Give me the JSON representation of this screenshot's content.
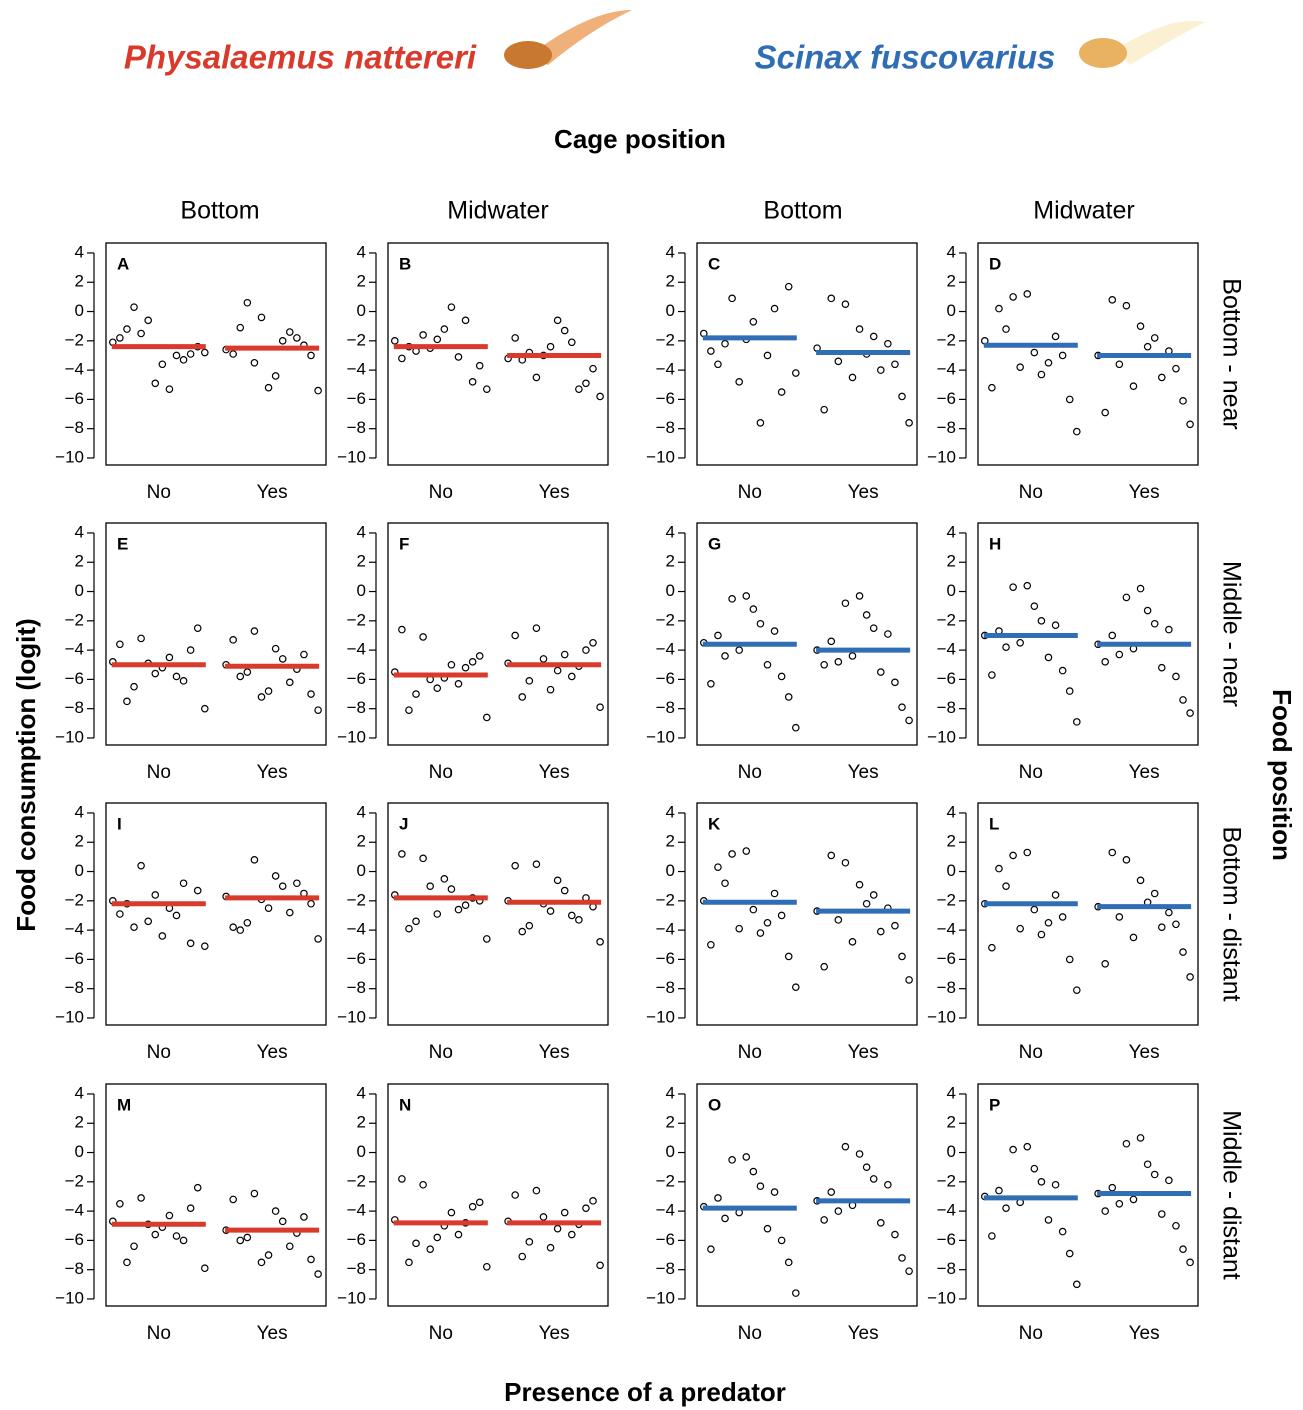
{
  "header": {
    "species": [
      "Physalaemus nattereri",
      "Scinax fuscovarius"
    ],
    "species_colors": [
      "#d93a2b",
      "#2f6db5"
    ],
    "cage_title": "Cage position",
    "cage_columns": [
      "Bottom",
      "Midwater",
      "Bottom",
      "Midwater"
    ],
    "food_title": "Food position",
    "food_rows": [
      "Bottom - near",
      "Middle - near",
      "Bottom - distant",
      "Middle - distant"
    ],
    "y_label": "Food consumption (logit)",
    "x_label": "Presence of a predator"
  },
  "chart_data": [
    {
      "type": "scatter",
      "label": "A",
      "categories": [
        "No",
        "Yes"
      ],
      "line_color": "#d93a2b",
      "ylim": [
        -10.48,
        4.68
      ],
      "yticks": [
        4,
        2,
        0,
        {
          "value": -2,
          "label": "−2"
        },
        {
          "value": -4,
          "label": "−4"
        },
        {
          "value": -6,
          "label": "−6"
        },
        {
          "value": -8,
          "label": "−8"
        },
        {
          "value": -10,
          "label": "−10"
        }
      ],
      "means": [
        -2.4,
        -2.5
      ],
      "points": [
        [
          -2.1,
          -3.0,
          -1.5,
          -2.8,
          -5.3,
          0.3,
          -2.4,
          -3.6,
          -1.2,
          -2.9,
          -4.9,
          -1.8,
          -3.3,
          -0.6
        ],
        [
          -2.6,
          -1.4,
          -3.5,
          -5.4,
          -2.0,
          0.6,
          -3.0,
          -4.4,
          -1.1,
          -2.3,
          -5.2,
          -2.9,
          -1.8,
          -0.4
        ]
      ]
    },
    {
      "type": "scatter",
      "label": "B",
      "categories": [
        "No",
        "Yes"
      ],
      "line_color": "#d93a2b",
      "ylim": [
        -10.48,
        4.68
      ],
      "yticks": [
        4,
        2,
        0,
        {
          "value": -2,
          "label": "−2"
        },
        {
          "value": -4,
          "label": "−4"
        },
        {
          "value": -6,
          "label": "−6"
        },
        {
          "value": -8,
          "label": "−8"
        },
        {
          "value": -10,
          "label": "−10"
        }
      ],
      "means": [
        -2.4,
        -3.0
      ],
      "points": [
        [
          -2.0,
          -3.1,
          -1.6,
          -5.3,
          0.3,
          -2.7,
          -3.7,
          -1.2,
          -2.4,
          -4.8,
          -1.9,
          -3.2,
          -0.6,
          -2.5
        ],
        [
          -3.2,
          -2.1,
          -4.5,
          -5.8,
          -1.3,
          -2.8,
          -3.9,
          -0.6,
          -3.3,
          -4.9,
          -2.4,
          -1.8,
          -5.3,
          -3.0
        ]
      ]
    },
    {
      "type": "scatter",
      "label": "C",
      "categories": [
        "No",
        "Yes"
      ],
      "line_color": "#2f6db5",
      "ylim": [
        -10.48,
        4.68
      ],
      "yticks": [
        4,
        2,
        0,
        {
          "value": -2,
          "label": "−2"
        },
        {
          "value": -4,
          "label": "−4"
        },
        {
          "value": -6,
          "label": "−6"
        },
        {
          "value": -8,
          "label": "−8"
        },
        {
          "value": -10,
          "label": "−10"
        }
      ],
      "means": [
        -1.8,
        -2.8
      ],
      "points": [
        [
          -1.5,
          -3.0,
          0.9,
          -4.2,
          -7.6,
          -2.2,
          1.7,
          -0.7,
          -3.6,
          -5.5,
          -1.9,
          -2.7,
          0.2,
          -4.8
        ],
        [
          -2.5,
          -4.0,
          0.5,
          -7.6,
          -1.7,
          -3.4,
          -5.8,
          -2.9,
          0.9,
          -3.6,
          -1.2,
          -6.7,
          -2.2,
          -4.5
        ]
      ]
    },
    {
      "type": "scatter",
      "label": "D",
      "categories": [
        "No",
        "Yes"
      ],
      "line_color": "#2f6db5",
      "ylim": [
        -10.48,
        4.68
      ],
      "yticks": [
        4,
        2,
        0,
        {
          "value": -2,
          "label": "−2"
        },
        {
          "value": -4,
          "label": "−4"
        },
        {
          "value": -6,
          "label": "−6"
        },
        {
          "value": -8,
          "label": "−8"
        },
        {
          "value": -10,
          "label": "−10"
        }
      ],
      "means": [
        -2.3,
        -3.0
      ],
      "points": [
        [
          -2.0,
          -3.5,
          1.0,
          -8.2,
          -4.3,
          -1.2,
          -6.0,
          -2.8,
          0.2,
          -3.0,
          1.2,
          -5.2,
          -1.7,
          -3.8
        ],
        [
          -3.0,
          -4.5,
          0.4,
          -7.7,
          -1.8,
          -3.6,
          -6.1,
          -2.4,
          0.8,
          -3.9,
          -1.0,
          -6.9,
          -2.7,
          -5.1
        ]
      ]
    },
    {
      "type": "scatter",
      "label": "E",
      "categories": [
        "No",
        "Yes"
      ],
      "line_color": "#d93a2b",
      "ylim": [
        -10.48,
        4.68
      ],
      "yticks": [
        4,
        2,
        0,
        {
          "value": -2,
          "label": "−2"
        },
        {
          "value": -4,
          "label": "−4"
        },
        {
          "value": -6,
          "label": "−6"
        },
        {
          "value": -8,
          "label": "−8"
        },
        {
          "value": -10,
          "label": "−10"
        }
      ],
      "means": [
        -5.0,
        -5.1
      ],
      "points": [
        [
          -4.8,
          -5.8,
          -3.2,
          -8.0,
          -4.5,
          -6.5,
          -2.5,
          -5.2,
          -7.5,
          -4.0,
          -5.6,
          -3.6,
          -6.1,
          -4.9
        ],
        [
          -5.0,
          -6.2,
          -2.7,
          -8.1,
          -4.6,
          -5.5,
          -7.0,
          -3.9,
          -5.8,
          -4.3,
          -6.8,
          -3.3,
          -5.3,
          -7.2
        ]
      ]
    },
    {
      "type": "scatter",
      "label": "F",
      "categories": [
        "No",
        "Yes"
      ],
      "line_color": "#d93a2b",
      "ylim": [
        -10.48,
        4.68
      ],
      "yticks": [
        4,
        2,
        0,
        {
          "value": -2,
          "label": "−2"
        },
        {
          "value": -4,
          "label": "−4"
        },
        {
          "value": -6,
          "label": "−6"
        },
        {
          "value": -8,
          "label": "−8"
        },
        {
          "value": -10,
          "label": "−10"
        }
      ],
      "means": [
        -5.7,
        -5.0
      ],
      "points": [
        [
          -5.5,
          -6.3,
          -3.1,
          -8.6,
          -5.0,
          -7.0,
          -4.4,
          -5.9,
          -8.1,
          -4.8,
          -6.6,
          -2.6,
          -5.2,
          -6.0
        ],
        [
          -4.9,
          -5.8,
          -2.5,
          -7.9,
          -4.3,
          -6.1,
          -3.5,
          -5.4,
          -7.2,
          -4.0,
          -6.7,
          -3.0,
          -5.1,
          -4.6
        ]
      ]
    },
    {
      "type": "scatter",
      "label": "G",
      "categories": [
        "No",
        "Yes"
      ],
      "line_color": "#2f6db5",
      "ylim": [
        -10.48,
        4.68
      ],
      "yticks": [
        4,
        2,
        0,
        {
          "value": -2,
          "label": "−2"
        },
        {
          "value": -4,
          "label": "−4"
        },
        {
          "value": -6,
          "label": "−6"
        },
        {
          "value": -8,
          "label": "−8"
        },
        {
          "value": -10,
          "label": "−10"
        }
      ],
      "means": [
        -3.6,
        -4.0
      ],
      "points": [
        [
          -3.5,
          -5.0,
          -0.5,
          -9.3,
          -2.2,
          -4.4,
          -7.2,
          -1.2,
          -3.0,
          -5.8,
          -0.3,
          -6.3,
          -2.7,
          -4.0
        ],
        [
          -4.0,
          -5.5,
          -0.8,
          -8.8,
          -2.5,
          -4.8,
          -7.9,
          -1.6,
          -3.4,
          -6.2,
          -0.3,
          -5.0,
          -2.9,
          -4.4
        ]
      ]
    },
    {
      "type": "scatter",
      "label": "H",
      "categories": [
        "No",
        "Yes"
      ],
      "line_color": "#2f6db5",
      "ylim": [
        -10.48,
        4.68
      ],
      "yticks": [
        4,
        2,
        0,
        {
          "value": -2,
          "label": "−2"
        },
        {
          "value": -4,
          "label": "−4"
        },
        {
          "value": -6,
          "label": "−6"
        },
        {
          "value": -8,
          "label": "−8"
        },
        {
          "value": -10,
          "label": "−10"
        }
      ],
      "means": [
        -3.0,
        -3.6
      ],
      "points": [
        [
          -3.0,
          -4.5,
          0.3,
          -8.9,
          -2.0,
          -3.8,
          -6.8,
          -1.0,
          -2.7,
          -5.4,
          0.4,
          -5.7,
          -2.3,
          -3.5
        ],
        [
          -3.6,
          -5.2,
          -0.4,
          -8.3,
          -2.2,
          -4.3,
          -7.4,
          -1.3,
          -3.0,
          -5.8,
          0.2,
          -4.8,
          -2.6,
          -3.9
        ]
      ]
    },
    {
      "type": "scatter",
      "label": "I",
      "categories": [
        "No",
        "Yes"
      ],
      "line_color": "#d93a2b",
      "ylim": [
        -10.48,
        4.68
      ],
      "yticks": [
        4,
        2,
        0,
        {
          "value": -2,
          "label": "−2"
        },
        {
          "value": -4,
          "label": "−4"
        },
        {
          "value": -6,
          "label": "−6"
        },
        {
          "value": -8,
          "label": "−8"
        },
        {
          "value": -10,
          "label": "−10"
        }
      ],
      "means": [
        -2.2,
        -1.8
      ],
      "points": [
        [
          -2.0,
          -3.0,
          0.4,
          -5.1,
          -2.5,
          -3.8,
          -1.3,
          -4.4,
          -2.2,
          -4.9,
          -1.6,
          -2.9,
          -0.8,
          -3.4
        ],
        [
          -1.7,
          -2.8,
          0.8,
          -4.6,
          -1.0,
          -3.5,
          -2.2,
          -0.3,
          -4.0,
          -1.5,
          -2.5,
          -3.8,
          -0.8,
          -1.9
        ]
      ]
    },
    {
      "type": "scatter",
      "label": "J",
      "categories": [
        "No",
        "Yes"
      ],
      "line_color": "#d93a2b",
      "ylim": [
        -10.48,
        4.68
      ],
      "yticks": [
        4,
        2,
        0,
        {
          "value": -2,
          "label": "−2"
        },
        {
          "value": -4,
          "label": "−4"
        },
        {
          "value": -6,
          "label": "−6"
        },
        {
          "value": -8,
          "label": "−8"
        },
        {
          "value": -10,
          "label": "−10"
        }
      ],
      "means": [
        -1.8,
        -2.1
      ],
      "points": [
        [
          -1.6,
          -2.6,
          0.9,
          -4.6,
          -1.2,
          -3.4,
          -2.0,
          -0.5,
          -3.9,
          -1.8,
          -2.9,
          1.2,
          -2.3,
          -1.0
        ],
        [
          -2.0,
          -3.0,
          0.5,
          -4.8,
          -1.3,
          -3.7,
          -2.4,
          -0.6,
          -4.1,
          -1.8,
          -2.7,
          0.4,
          -3.3,
          -2.2
        ]
      ]
    },
    {
      "type": "scatter",
      "label": "K",
      "categories": [
        "No",
        "Yes"
      ],
      "line_color": "#2f6db5",
      "ylim": [
        -10.48,
        4.68
      ],
      "yticks": [
        4,
        2,
        0,
        {
          "value": -2,
          "label": "−2"
        },
        {
          "value": -4,
          "label": "−4"
        },
        {
          "value": -6,
          "label": "−6"
        },
        {
          "value": -8,
          "label": "−8"
        },
        {
          "value": -10,
          "label": "−10"
        }
      ],
      "means": [
        -2.1,
        -2.7
      ],
      "points": [
        [
          -2.0,
          -3.5,
          1.2,
          -7.9,
          -4.2,
          -0.8,
          -5.8,
          -2.6,
          0.3,
          -3.0,
          1.4,
          -5.0,
          -1.5,
          -3.9
        ],
        [
          -2.7,
          -4.1,
          0.6,
          -7.4,
          -1.6,
          -3.3,
          -5.8,
          -2.2,
          1.1,
          -3.7,
          -0.9,
          -6.5,
          -2.5,
          -4.8
        ]
      ]
    },
    {
      "type": "scatter",
      "label": "L",
      "categories": [
        "No",
        "Yes"
      ],
      "line_color": "#2f6db5",
      "ylim": [
        -10.48,
        4.68
      ],
      "yticks": [
        4,
        2,
        0,
        {
          "value": -2,
          "label": "−2"
        },
        {
          "value": -4,
          "label": "−4"
        },
        {
          "value": -6,
          "label": "−6"
        },
        {
          "value": -8,
          "label": "−8"
        },
        {
          "value": -10,
          "label": "−10"
        }
      ],
      "means": [
        -2.2,
        -2.4
      ],
      "points": [
        [
          -2.2,
          -3.5,
          1.1,
          -8.1,
          -4.3,
          -1.0,
          -6.0,
          -2.6,
          0.2,
          -3.1,
          1.3,
          -5.2,
          -1.6,
          -3.9
        ],
        [
          -2.4,
          -3.8,
          0.8,
          -7.2,
          -1.5,
          -3.1,
          -5.5,
          -2.1,
          1.3,
          -3.6,
          -0.6,
          -6.3,
          -2.8,
          -4.5
        ]
      ]
    },
    {
      "type": "scatter",
      "label": "M",
      "categories": [
        "No",
        "Yes"
      ],
      "line_color": "#d93a2b",
      "ylim": [
        -10.48,
        4.68
      ],
      "yticks": [
        4,
        2,
        0,
        {
          "value": -2,
          "label": "−2"
        },
        {
          "value": -4,
          "label": "−4"
        },
        {
          "value": -6,
          "label": "−6"
        },
        {
          "value": -8,
          "label": "−8"
        },
        {
          "value": -10,
          "label": "−10"
        }
      ],
      "means": [
        -4.9,
        -5.3
      ],
      "points": [
        [
          -4.7,
          -5.7,
          -3.1,
          -7.9,
          -4.3,
          -6.4,
          -2.4,
          -5.1,
          -7.5,
          -3.8,
          -5.6,
          -3.5,
          -6.0,
          -4.9
        ],
        [
          -5.3,
          -6.4,
          -2.8,
          -8.3,
          -4.7,
          -5.8,
          -7.3,
          -4.0,
          -6.0,
          -4.4,
          -7.0,
          -3.2,
          -5.5,
          -7.5
        ]
      ]
    },
    {
      "type": "scatter",
      "label": "N",
      "categories": [
        "No",
        "Yes"
      ],
      "line_color": "#d93a2b",
      "ylim": [
        -10.48,
        4.68
      ],
      "yticks": [
        4,
        2,
        0,
        {
          "value": -2,
          "label": "−2"
        },
        {
          "value": -4,
          "label": "−4"
        },
        {
          "value": -6,
          "label": "−6"
        },
        {
          "value": -8,
          "label": "−8"
        },
        {
          "value": -10,
          "label": "−10"
        }
      ],
      "means": [
        -4.8,
        -4.8
      ],
      "points": [
        [
          -4.6,
          -5.6,
          -2.2,
          -7.8,
          -4.1,
          -6.2,
          -3.4,
          -5.0,
          -7.5,
          -3.7,
          -5.8,
          -1.8,
          -4.8,
          -6.6
        ],
        [
          -4.7,
          -5.6,
          -2.6,
          -7.7,
          -4.1,
          -6.1,
          -3.3,
          -5.2,
          -7.1,
          -3.8,
          -6.5,
          -2.9,
          -4.9,
          -4.4
        ]
      ]
    },
    {
      "type": "scatter",
      "label": "O",
      "categories": [
        "No",
        "Yes"
      ],
      "line_color": "#2f6db5",
      "ylim": [
        -10.48,
        4.68
      ],
      "yticks": [
        4,
        2,
        0,
        {
          "value": -2,
          "label": "−2"
        },
        {
          "value": -4,
          "label": "−4"
        },
        {
          "value": -6,
          "label": "−6"
        },
        {
          "value": -8,
          "label": "−8"
        },
        {
          "value": -10,
          "label": "−10"
        }
      ],
      "means": [
        -3.8,
        -3.3
      ],
      "points": [
        [
          -3.7,
          -5.2,
          -0.5,
          -9.6,
          -2.3,
          -4.5,
          -7.5,
          -1.3,
          -3.1,
          -6.0,
          -0.3,
          -6.6,
          -2.7,
          -4.1
        ],
        [
          -3.3,
          -4.8,
          0.4,
          -8.1,
          -1.8,
          -4.0,
          -7.2,
          -1.0,
          -2.7,
          -5.6,
          -0.1,
          -4.6,
          -2.2,
          -3.6
        ]
      ]
    },
    {
      "type": "scatter",
      "label": "P",
      "categories": [
        "No",
        "Yes"
      ],
      "line_color": "#2f6db5",
      "ylim": [
        -10.48,
        4.68
      ],
      "yticks": [
        4,
        2,
        0,
        {
          "value": -2,
          "label": "−2"
        },
        {
          "value": -4,
          "label": "−4"
        },
        {
          "value": -6,
          "label": "−6"
        },
        {
          "value": -8,
          "label": "−8"
        },
        {
          "value": -10,
          "label": "−10"
        }
      ],
      "means": [
        -3.1,
        -2.8
      ],
      "points": [
        [
          -3.0,
          -4.6,
          0.2,
          -9.0,
          -2.0,
          -3.8,
          -6.9,
          -1.1,
          -2.6,
          -5.4,
          0.4,
          -5.7,
          -2.2,
          -3.4
        ],
        [
          -2.8,
          -4.2,
          0.6,
          -7.5,
          -1.5,
          -3.5,
          -6.6,
          -0.8,
          -2.4,
          -5.0,
          1.0,
          -4.0,
          -1.9,
          -3.2
        ]
      ]
    }
  ]
}
